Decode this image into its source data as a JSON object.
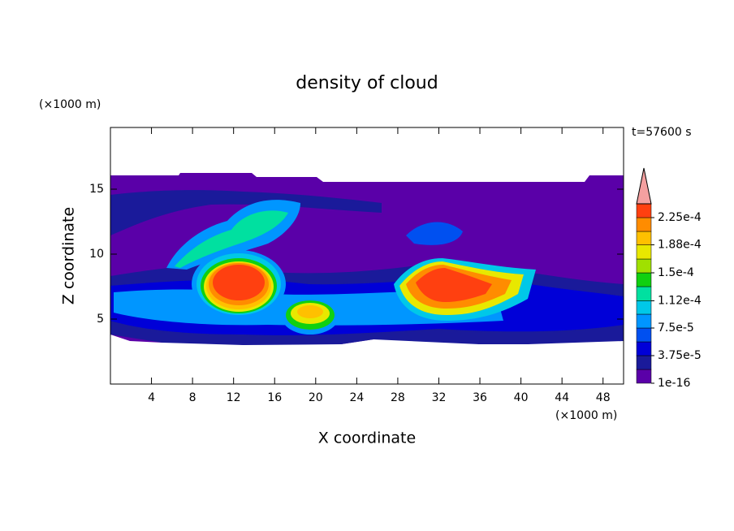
{
  "chart_data": {
    "type": "contour",
    "title": "density of cloud",
    "xlabel": "X coordinate",
    "ylabel": "Z coordinate",
    "xunit": "(×1000 m)",
    "yunit": "(×1000 m)",
    "annotation": "t=57600 s",
    "xlim": [
      0,
      50
    ],
    "ylim": [
      0,
      19.75
    ],
    "xticks": [
      4,
      8,
      12,
      16,
      20,
      24,
      28,
      32,
      36,
      40,
      44,
      48
    ],
    "yticks": [
      5,
      10,
      15
    ],
    "levels": [
      1e-16,
      1.875e-05,
      3.75e-05,
      5.625e-05,
      7.5e-05,
      9.375e-05,
      0.000112,
      0.00013125,
      0.00015,
      0.00016875,
      0.000188,
      0.00020625,
      0.000225,
      0.00024375
    ],
    "colors": [
      "#5a00a8",
      "#1a1a9a",
      "#0000d8",
      "#0050f0",
      "#0096ff",
      "#00c8e8",
      "#00e0a0",
      "#10d010",
      "#a0e000",
      "#e8e800",
      "#ffc000",
      "#ff8c00",
      "#ff4010"
    ],
    "extend_color": "#f4a0a0",
    "colorbar_ticks": [
      {
        "value": 1e-16,
        "label": "1e-16"
      },
      {
        "value": 3.75e-05,
        "label": "3.75e-5"
      },
      {
        "value": 7.5e-05,
        "label": "7.5e-5"
      },
      {
        "value": 0.000112,
        "label": "1.12e-4"
      },
      {
        "value": 0.00015,
        "label": "1.5e-4"
      },
      {
        "value": 0.000188,
        "label": "1.88e-4"
      },
      {
        "value": 0.000225,
        "label": "2.25e-4"
      }
    ]
  }
}
